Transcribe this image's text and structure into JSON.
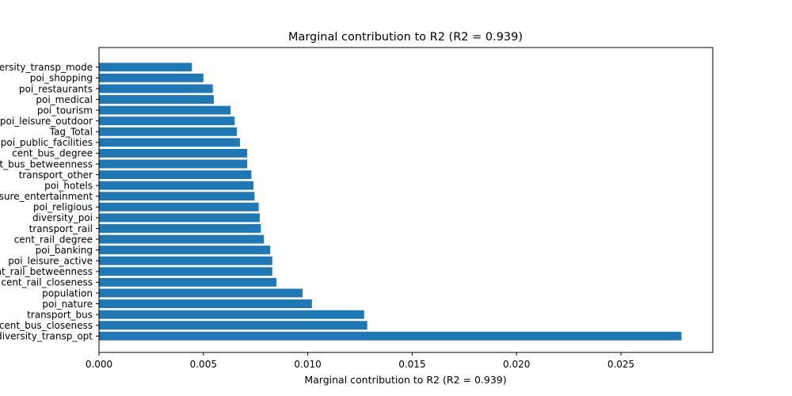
{
  "chart_data": {
    "type": "bar",
    "orientation": "horizontal",
    "title": "Marginal contribution to R2 (R2 = 0.939)",
    "xlabel": "Marginal contribution to R2 (R2 = 0.939)",
    "ylabel": "",
    "xlim": [
      0,
      0.0294
    ],
    "xticks": [
      "0.000",
      "0.005",
      "0.010",
      "0.015",
      "0.020",
      "0.025"
    ],
    "xtick_values": [
      0,
      0.005,
      0.01,
      0.015,
      0.02,
      0.025
    ],
    "bar_color": "#1f77b4",
    "grid": false,
    "categories": [
      "diversity_transp_opt",
      "cent_bus_closeness",
      "transport_bus",
      "poi_nature",
      "population",
      "cent_rail_closeness",
      "cent_rail_betweenness",
      "poi_leisure_active",
      "poi_banking",
      "cent_rail_degree",
      "transport_rail",
      "diversity_poi",
      "poi_religious",
      "poi_leisure_entertainment",
      "poi_hotels",
      "transport_other",
      "cent_bus_betweenness",
      "cent_bus_degree",
      "poi_public_facilities",
      "Tag_Total",
      "poi_leisure_outdoor",
      "poi_tourism",
      "poi_medical",
      "poi_restaurants",
      "poi_shopping",
      "diversity_transp_mode"
    ],
    "values": [
      0.0279,
      0.01285,
      0.0127,
      0.0102,
      0.00975,
      0.0085,
      0.0083,
      0.0083,
      0.0082,
      0.0079,
      0.00775,
      0.0077,
      0.00765,
      0.00745,
      0.0074,
      0.0073,
      0.0071,
      0.0071,
      0.00675,
      0.0066,
      0.0065,
      0.0063,
      0.0055,
      0.00545,
      0.005,
      0.00445
    ]
  }
}
